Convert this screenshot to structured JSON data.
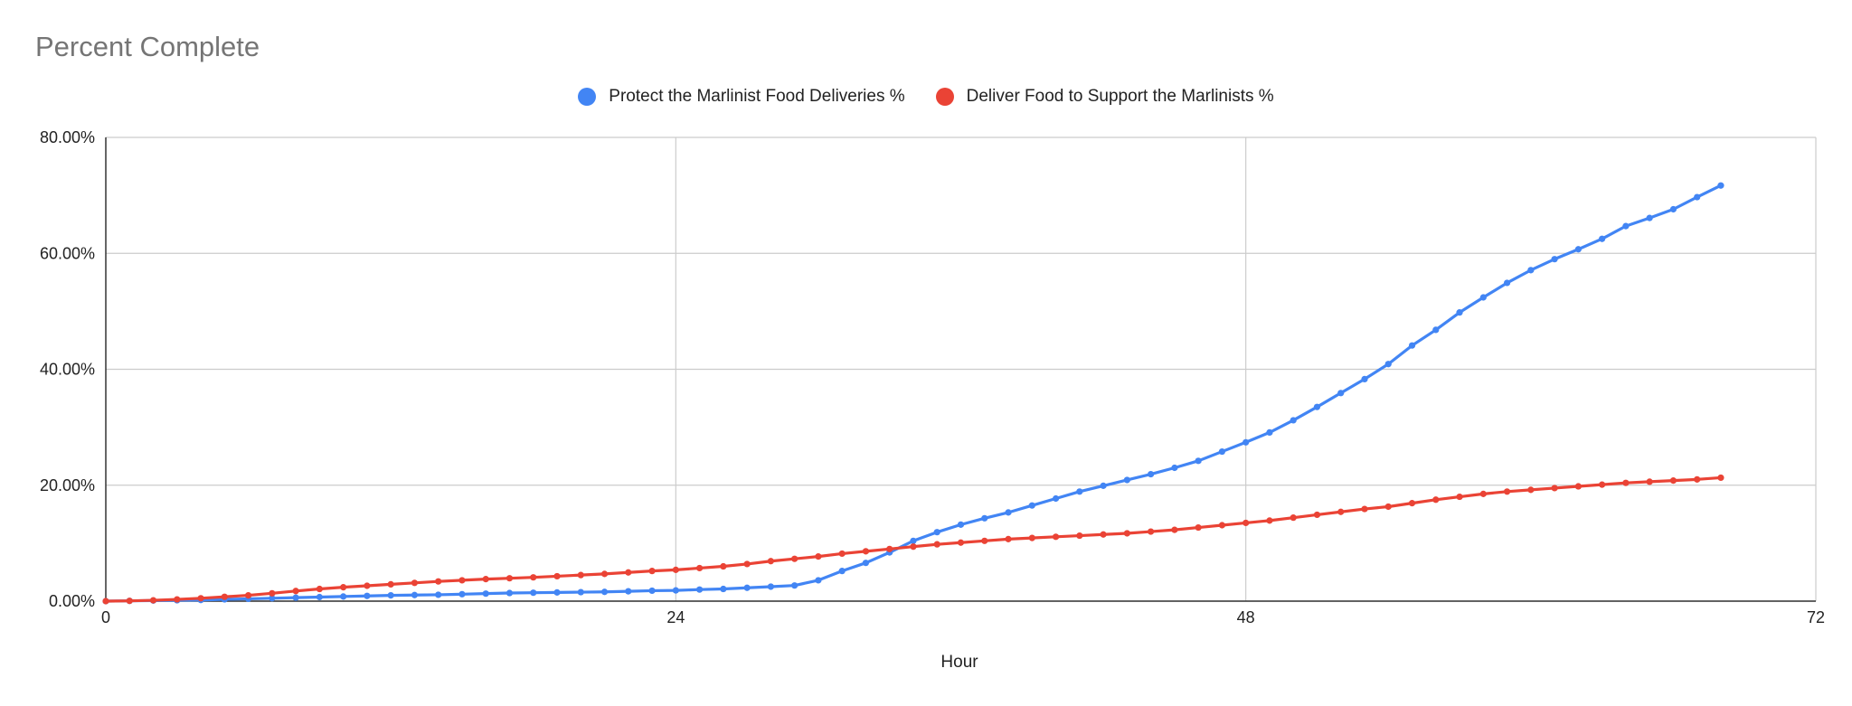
{
  "chart_data": {
    "type": "line",
    "title": "Percent Complete",
    "xlabel": "Hour",
    "ylabel": "",
    "xlim": [
      0,
      72
    ],
    "ylim": [
      0,
      80
    ],
    "x_ticks": [
      0,
      24,
      48,
      72
    ],
    "y_ticks": [
      "0.00%",
      "20.00%",
      "40.00%",
      "60.00%",
      "80.00%"
    ],
    "y_tick_values": [
      0,
      20,
      40,
      60,
      80
    ],
    "grid": true,
    "legend_position": "top",
    "x": [
      0,
      1,
      2,
      3,
      4,
      5,
      6,
      7,
      8,
      9,
      10,
      11,
      12,
      13,
      14,
      15,
      16,
      17,
      18,
      19,
      20,
      21,
      22,
      23,
      24,
      25,
      26,
      27,
      28,
      29,
      30,
      31,
      32,
      33,
      34,
      35,
      36,
      37,
      38,
      39,
      40,
      41,
      42,
      43,
      44,
      45,
      46,
      47,
      48,
      49,
      50,
      51,
      52,
      53,
      54,
      55,
      56,
      57,
      58,
      59,
      60,
      61,
      62,
      63,
      64,
      65,
      66,
      67,
      68
    ],
    "series": [
      {
        "name": "Protect the Marlinist Food Deliveries %",
        "color": "#4285f4",
        "values": [
          0,
          0.05,
          0.1,
          0.15,
          0.2,
          0.3,
          0.4,
          0.5,
          0.6,
          0.7,
          0.8,
          0.9,
          1.0,
          1.05,
          1.1,
          1.2,
          1.3,
          1.4,
          1.45,
          1.5,
          1.55,
          1.6,
          1.7,
          1.8,
          1.85,
          2.0,
          2.1,
          2.3,
          2.5,
          2.7,
          3.6,
          5.2,
          6.6,
          8.4,
          10.4,
          11.9,
          13.2,
          14.3,
          15.3,
          16.5,
          17.7,
          18.9,
          19.9,
          20.9,
          21.9,
          23.0,
          24.2,
          25.8,
          27.4,
          29.1,
          31.2,
          33.5,
          35.9,
          38.3,
          40.9,
          44.1,
          46.8,
          49.8,
          52.4,
          54.9,
          57.1,
          59.0,
          60.7,
          62.5,
          64.7,
          66.1,
          67.6,
          69.7,
          71.7
        ]
      },
      {
        "name": "Deliver Food to Support the Marlinists %",
        "color": "#ea4335",
        "values": [
          0,
          0.05,
          0.15,
          0.3,
          0.5,
          0.75,
          1.0,
          1.35,
          1.75,
          2.1,
          2.4,
          2.65,
          2.9,
          3.15,
          3.4,
          3.6,
          3.8,
          3.95,
          4.1,
          4.3,
          4.5,
          4.7,
          4.95,
          5.2,
          5.4,
          5.7,
          6.0,
          6.4,
          6.9,
          7.3,
          7.7,
          8.2,
          8.6,
          9.0,
          9.4,
          9.8,
          10.1,
          10.4,
          10.7,
          10.9,
          11.1,
          11.3,
          11.5,
          11.7,
          12.0,
          12.3,
          12.7,
          13.1,
          13.5,
          13.9,
          14.4,
          14.9,
          15.4,
          15.9,
          16.3,
          16.9,
          17.5,
          18.0,
          18.5,
          18.9,
          19.2,
          19.5,
          19.8,
          20.1,
          20.4,
          20.6,
          20.8,
          21.0,
          21.3
        ]
      }
    ]
  }
}
